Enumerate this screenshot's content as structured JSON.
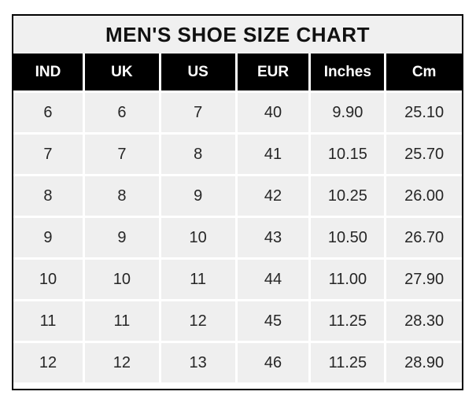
{
  "title": "MEN'S SHOE SIZE CHART",
  "chart_data": {
    "type": "table",
    "title": "MEN'S SHOE SIZE CHART",
    "columns": [
      "IND",
      "UK",
      "US",
      "EUR",
      "Inches",
      "Cm"
    ],
    "rows": [
      [
        "6",
        "6",
        "7",
        "40",
        "9.90",
        "25.10"
      ],
      [
        "7",
        "7",
        "8",
        "41",
        "10.15",
        "25.70"
      ],
      [
        "8",
        "8",
        "9",
        "42",
        "10.25",
        "26.00"
      ],
      [
        "9",
        "9",
        "10",
        "43",
        "10.50",
        "26.70"
      ],
      [
        "10",
        "10",
        "11",
        "44",
        "11.00",
        "27.90"
      ],
      [
        "11",
        "11",
        "12",
        "45",
        "11.25",
        "28.30"
      ],
      [
        "12",
        "12",
        "13",
        "46",
        "11.25",
        "28.90"
      ]
    ]
  },
  "colors": {
    "border": "#000000",
    "title_bg": "#f0f0f0",
    "header_bg": "#000000",
    "header_text": "#ffffff",
    "cell_bg": "#efefef",
    "cell_text": "#262626",
    "gridline": "#ffffff",
    "page_bg": "#ffffff"
  }
}
